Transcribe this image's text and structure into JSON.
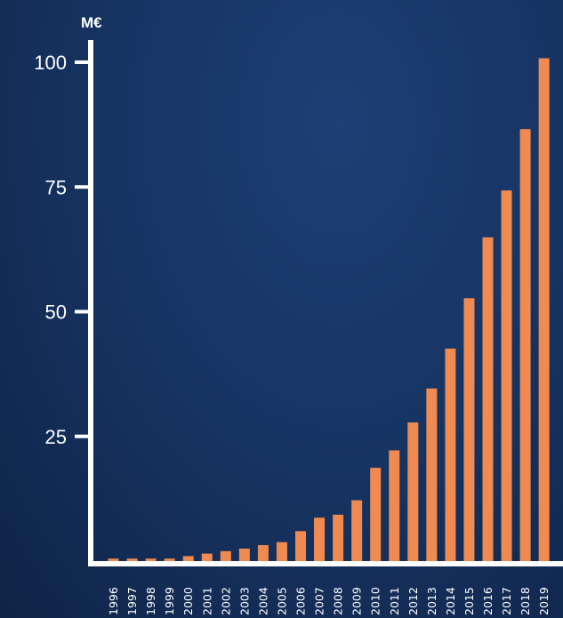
{
  "chart_data": {
    "type": "bar",
    "title": "",
    "xlabel": "",
    "ylabel": "M€",
    "ylim": [
      0,
      100
    ],
    "yticks": [
      25,
      50,
      75,
      100
    ],
    "grid": false,
    "bar_color": "#f08a50",
    "axis_color": "#ffffff",
    "background_color": "#173564",
    "categories": [
      "1996",
      "1997",
      "1998",
      "1999",
      "2000",
      "2001",
      "2002",
      "2003",
      "2004",
      "2005",
      "2006",
      "2007",
      "2008",
      "2009",
      "2010",
      "2011",
      "2012",
      "2013",
      "2014",
      "2015",
      "2016",
      "2017",
      "2018",
      "2019"
    ],
    "values": [
      0.5,
      0.5,
      0.5,
      0.5,
      1.0,
      1.5,
      2.0,
      2.5,
      3.2,
      3.8,
      6.0,
      8.7,
      9.3,
      12.2,
      18.7,
      22.2,
      27.8,
      34.6,
      42.6,
      52.7,
      64.9,
      74.3,
      86.6,
      100.8
    ]
  }
}
